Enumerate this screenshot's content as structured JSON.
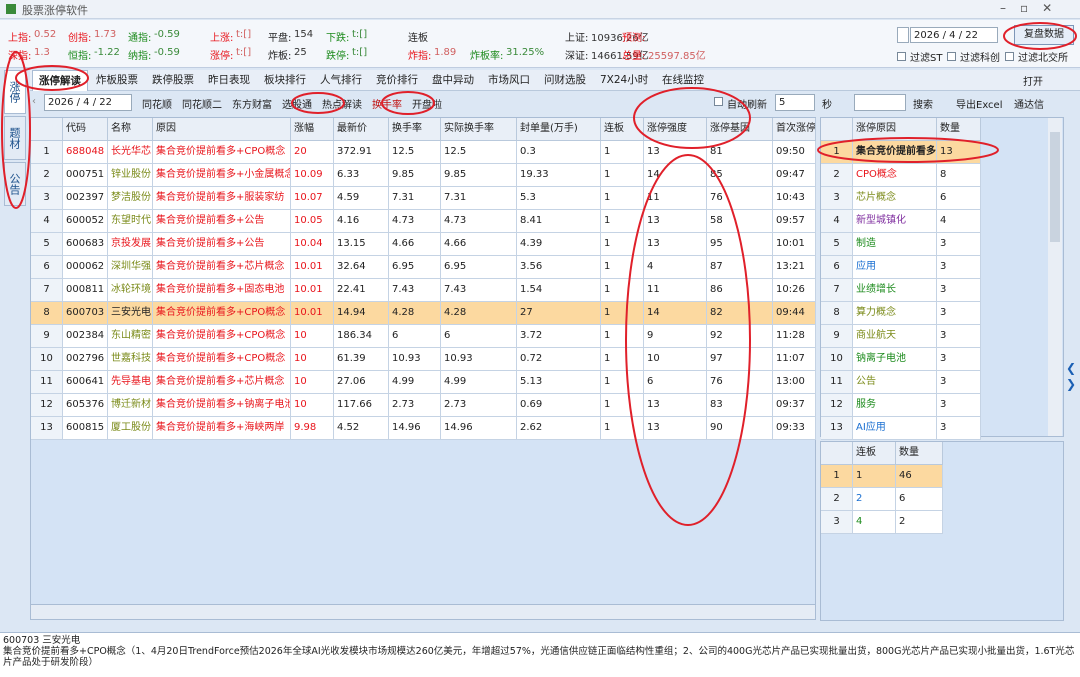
{
  "window": {
    "title": "股票涨停软件"
  },
  "stats": [
    {
      "label": "上指:",
      "value": "0.52"
    },
    {
      "label": "创指:",
      "value": "1.73"
    },
    {
      "label": "通指:",
      "value": "-0.59"
    },
    {
      "label": "上涨:",
      "value": "t:[]"
    },
    {
      "label": "平盘:",
      "value": "154"
    },
    {
      "label": "下跌:",
      "value": "t:[]"
    },
    {
      "label": "连板"
    },
    {
      "label": "上证:",
      "value": "10936.26亿"
    },
    {
      "label": "预测:"
    },
    {
      "label": "深指:",
      "value": "1.3"
    },
    {
      "label": "恒指:",
      "value": "-1.22"
    },
    {
      "label": "纳指:",
      "value": "-0.59"
    },
    {
      "label": "涨停:",
      "value": "t:[]"
    },
    {
      "label": "炸板:",
      "value": "25"
    },
    {
      "label": "跌停:",
      "value": "t:[]"
    },
    {
      "label": "炸指:",
      "value": "1.89"
    },
    {
      "label": "炸板率:",
      "value": "31.25%"
    },
    {
      "label": "深证:",
      "value": "14661.59亿"
    },
    {
      "label": "总量:",
      "value": "25597.85亿"
    }
  ],
  "top_right": {
    "date": "2026 / 4 / 22",
    "button": "复盘数据",
    "filters": [
      "过滤ST",
      "过滤科创",
      "过滤北交所"
    ]
  },
  "side_tabs": [
    "涨停",
    "题材",
    "公告"
  ],
  "tabs": [
    "涨停解读",
    "炸板股票",
    "跌停股票",
    "昨日表现",
    "板块排行",
    "人气排行",
    "竞价排行",
    "盘中异动",
    "市场风口",
    "问财选股",
    "7X24小时",
    "在线监控"
  ],
  "open_menu": "打开",
  "toolbar": {
    "date": "2026 / 4 / 22",
    "links": [
      "同花顺",
      "同花顺二",
      "东方财富",
      "选股通",
      "热点解读",
      "换手率",
      "开盘啦"
    ],
    "auto_refresh": "自动刷新",
    "interval": "5",
    "unit": "秒",
    "search": "搜索",
    "export": "导出Excel",
    "tdx": "通达信"
  },
  "main_table": {
    "columns": [
      "代码",
      "名称",
      "原因",
      "涨幅",
      "最新价",
      "换手率",
      "实际换手率",
      "封单量(万手)",
      "连板",
      "涨停强度",
      "涨停基因",
      "首次涨停"
    ],
    "rows": [
      [
        "1",
        "688048",
        "长光华芯",
        "集合竞价提前看多+CPO概念",
        "20",
        "372.91",
        "12.5",
        "12.5",
        "0.3",
        "1",
        "13",
        "81",
        "09:50"
      ],
      [
        "2",
        "000751",
        "锌业股份",
        "集合竞价提前看多+小金属概念",
        "10.09",
        "6.33",
        "9.85",
        "9.85",
        "19.33",
        "1",
        "14",
        "85",
        "09:47"
      ],
      [
        "3",
        "002397",
        "梦洁股份",
        "集合竞价提前看多+服装家纺",
        "10.07",
        "4.59",
        "7.31",
        "7.31",
        "5.3",
        "1",
        "11",
        "76",
        "10:43"
      ],
      [
        "4",
        "600052",
        "东望时代",
        "集合竞价提前看多+公告",
        "10.05",
        "4.16",
        "4.73",
        "4.73",
        "8.41",
        "1",
        "13",
        "58",
        "09:57"
      ],
      [
        "5",
        "600683",
        "京投发展",
        "集合竞价提前看多+公告",
        "10.04",
        "13.15",
        "4.66",
        "4.66",
        "4.39",
        "1",
        "13",
        "95",
        "10:01"
      ],
      [
        "6",
        "000062",
        "深圳华强",
        "集合竞价提前看多+芯片概念",
        "10.01",
        "32.64",
        "6.95",
        "6.95",
        "3.56",
        "1",
        "4",
        "87",
        "13:21"
      ],
      [
        "7",
        "000811",
        "冰轮环境",
        "集合竞价提前看多+固态电池",
        "10.01",
        "22.41",
        "7.43",
        "7.43",
        "1.54",
        "1",
        "11",
        "86",
        "10:26"
      ],
      [
        "8",
        "600703",
        "三安光电",
        "集合竞价提前看多+CPO概念",
        "10.01",
        "14.94",
        "4.28",
        "4.28",
        "27",
        "1",
        "14",
        "82",
        "09:44"
      ],
      [
        "9",
        "002384",
        "东山精密",
        "集合竞价提前看多+CPO概念",
        "10",
        "186.34",
        "6",
        "6",
        "3.72",
        "1",
        "9",
        "92",
        "11:28"
      ],
      [
        "10",
        "002796",
        "世嘉科技",
        "集合竞价提前看多+CPO概念",
        "10",
        "61.39",
        "10.93",
        "10.93",
        "0.72",
        "1",
        "10",
        "97",
        "11:07"
      ],
      [
        "11",
        "600641",
        "先导基电",
        "集合竞价提前看多+芯片概念",
        "10",
        "27.06",
        "4.99",
        "4.99",
        "5.13",
        "1",
        "6",
        "76",
        "13:00"
      ],
      [
        "12",
        "605376",
        "博迁新材",
        "集合竞价提前看多+钠离子电池",
        "10",
        "117.66",
        "2.73",
        "2.73",
        "0.69",
        "1",
        "13",
        "83",
        "09:37"
      ],
      [
        "13",
        "600815",
        "厦工股份",
        "集合竞价提前看多+海峡两岸",
        "9.98",
        "4.52",
        "14.96",
        "14.96",
        "2.62",
        "1",
        "13",
        "90",
        "09:33"
      ]
    ]
  },
  "reason_table": {
    "columns": [
      "涨停原因",
      "数量"
    ],
    "rows": [
      [
        "1",
        "集合竞价提前看多",
        "13"
      ],
      [
        "2",
        "CPO概念",
        "8"
      ],
      [
        "3",
        "芯片概念",
        "6"
      ],
      [
        "4",
        "新型城镇化",
        "4"
      ],
      [
        "5",
        "制造",
        "3"
      ],
      [
        "6",
        "应用",
        "3"
      ],
      [
        "7",
        "业绩增长",
        "3"
      ],
      [
        "8",
        "算力概念",
        "3"
      ],
      [
        "9",
        "商业航天",
        "3"
      ],
      [
        "10",
        "钠离子电池",
        "3"
      ],
      [
        "11",
        "公告",
        "3"
      ],
      [
        "12",
        "服务",
        "3"
      ],
      [
        "13",
        "AI应用",
        "3"
      ]
    ]
  },
  "board_table": {
    "columns": [
      "连板",
      "数量"
    ],
    "rows": [
      [
        "1",
        "1",
        "46"
      ],
      [
        "2",
        "2",
        "6"
      ],
      [
        "3",
        "4",
        "2"
      ]
    ]
  },
  "detail": {
    "stock": "600703 三安光电",
    "text": "集合竞价提前看多+CPO概念（1、4月20日TrendForce预估2026年全球AI光收发模块市场规模达260亿美元，年增超过57%，光通信供应链正面临结构性重组；2、公司的400G光芯片产品已实现批量出货，800G光芯片产品已实现小批量出货，1.6T光芯片产品处于研发阶段）"
  }
}
